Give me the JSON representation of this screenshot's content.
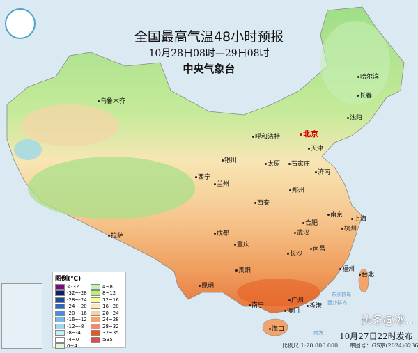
{
  "header": {
    "title": "全国最高气温48小时预报",
    "period": "10月28日08时—29日08时",
    "issuer": "中央气象台"
  },
  "cities": [
    {
      "name": "乌鲁木齐"
    },
    {
      "name": "哈尔滨"
    },
    {
      "name": "长春"
    },
    {
      "name": "沈阳"
    },
    {
      "name": "北京",
      "capital": true
    },
    {
      "name": "天津"
    },
    {
      "name": "呼和浩特"
    },
    {
      "name": "银川"
    },
    {
      "name": "太原"
    },
    {
      "name": "石家庄"
    },
    {
      "name": "济南"
    },
    {
      "name": "西宁"
    },
    {
      "name": "兰州"
    },
    {
      "name": "郑州"
    },
    {
      "name": "西安"
    },
    {
      "name": "南京"
    },
    {
      "name": "合肥"
    },
    {
      "name": "上海"
    },
    {
      "name": "杭州"
    },
    {
      "name": "成都"
    },
    {
      "name": "武汉"
    },
    {
      "name": "重庆"
    },
    {
      "name": "拉萨"
    },
    {
      "name": "南昌"
    },
    {
      "name": "长沙"
    },
    {
      "name": "贵阳"
    },
    {
      "name": "福州"
    },
    {
      "name": "台北"
    },
    {
      "name": "昆明"
    },
    {
      "name": "南宁"
    },
    {
      "name": "广州"
    },
    {
      "name": "澳门"
    },
    {
      "name": "香港"
    },
    {
      "name": "海口"
    }
  ],
  "islands": [
    "东沙群岛",
    "西沙群岛",
    "南海"
  ],
  "legend": {
    "title": "图例(℃)",
    "items": [
      {
        "label": "<-32",
        "color": "#7b0b7a"
      },
      {
        "label": "-32~-28",
        "color": "#0c2266"
      },
      {
        "label": "-28~-24",
        "color": "#1f4b9a"
      },
      {
        "label": "-24~-20",
        "color": "#2f68bd"
      },
      {
        "label": "-20~-16",
        "color": "#4a8fdb"
      },
      {
        "label": "-16~-12",
        "color": "#78b8ec"
      },
      {
        "label": "-12~-8",
        "color": "#9fd8ea"
      },
      {
        "label": "-8~-4",
        "color": "#c8eef5"
      },
      {
        "label": "-4~0",
        "color": "#ffffff"
      },
      {
        "label": "0~4",
        "color": "#e3f7d7"
      },
      {
        "label": "4~8",
        "color": "#c6eeb5"
      },
      {
        "label": "8~12",
        "color": "#b4f07a"
      },
      {
        "label": "12~16",
        "color": "#fcfc9c"
      },
      {
        "label": "16~20",
        "color": "#fbe8c0"
      },
      {
        "label": "20~24",
        "color": "#f8d2a3"
      },
      {
        "label": "24~28",
        "color": "#f1a56d"
      },
      {
        "label": "28~32",
        "color": "#ea8a7d"
      },
      {
        "label": "32~35",
        "color": "#e35a1c"
      },
      {
        "label": "≥35",
        "color": "#d74f4f"
      }
    ]
  },
  "footer": {
    "issued": "10月27日22时发布",
    "scale": "比例尺 1:20 000 000",
    "map_number": "审图号：GS京(2024)0236号"
  },
  "watermark": "头条@冰..."
}
